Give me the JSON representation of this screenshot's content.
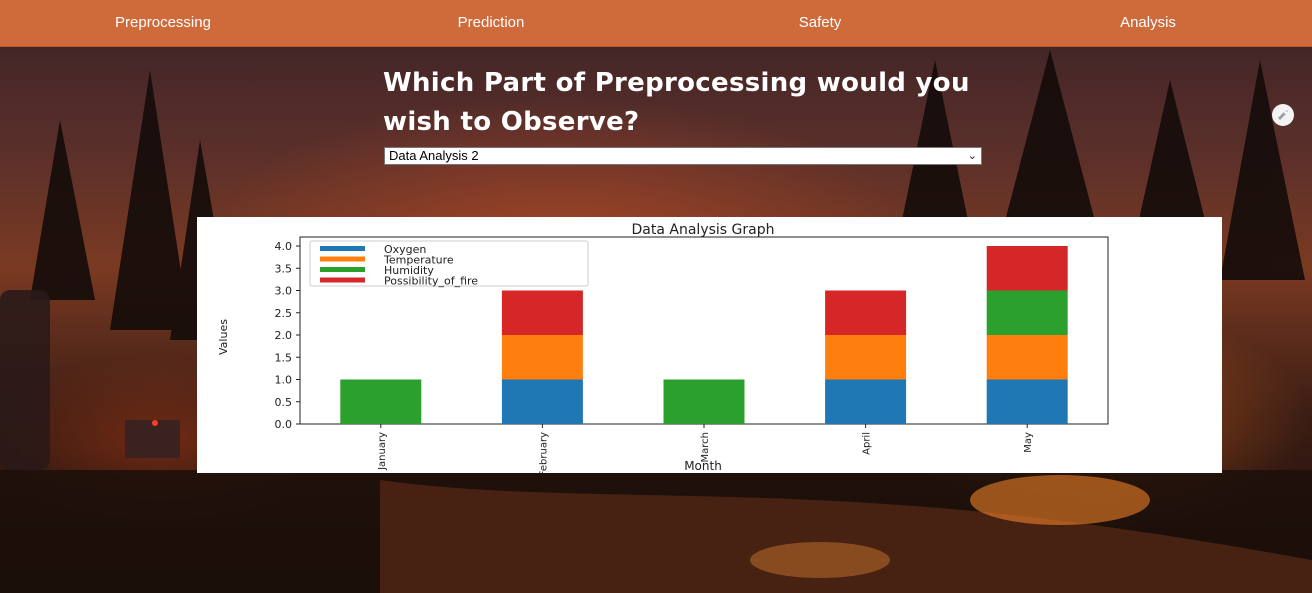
{
  "nav": {
    "items": [
      "Preprocessing",
      "Prediction",
      "Safety",
      "Analysis"
    ]
  },
  "heading": "Which Part of Preprocessing would you wish to Observe?",
  "select": {
    "value": "Data Analysis 2"
  },
  "colors": {
    "navbar": "#cf6a3b",
    "oxygen": "#1f77b4",
    "temperature": "#ff7f0e",
    "humidity": "#2ca02c",
    "possibility_of_fire": "#d62728"
  },
  "icons": {
    "corner": "rocket-icon",
    "dropdown": "chevron-down-icon"
  },
  "chart_data": {
    "type": "bar",
    "stacked": true,
    "title": "Data Analysis Graph",
    "xlabel": "Month",
    "ylabel": "Values",
    "categories": [
      "January",
      "February",
      "March",
      "April",
      "May"
    ],
    "series": [
      {
        "name": "Oxygen",
        "color": "#1f77b4",
        "values": [
          0,
          1,
          0,
          1,
          1
        ]
      },
      {
        "name": "Temperature",
        "color": "#ff7f0e",
        "values": [
          0,
          1,
          0,
          1,
          1
        ]
      },
      {
        "name": "Humidity",
        "color": "#2ca02c",
        "values": [
          1,
          0,
          1,
          0,
          1
        ]
      },
      {
        "name": "Possibility_of_fire",
        "color": "#d62728",
        "values": [
          0,
          1,
          0,
          1,
          1
        ]
      }
    ],
    "ylim": [
      0,
      4.0
    ],
    "yticks": [
      "0.0",
      "0.5",
      "1.0",
      "1.5",
      "2.0",
      "2.5",
      "3.0",
      "3.5",
      "4.0"
    ],
    "legend": "top-left",
    "grid": false
  }
}
